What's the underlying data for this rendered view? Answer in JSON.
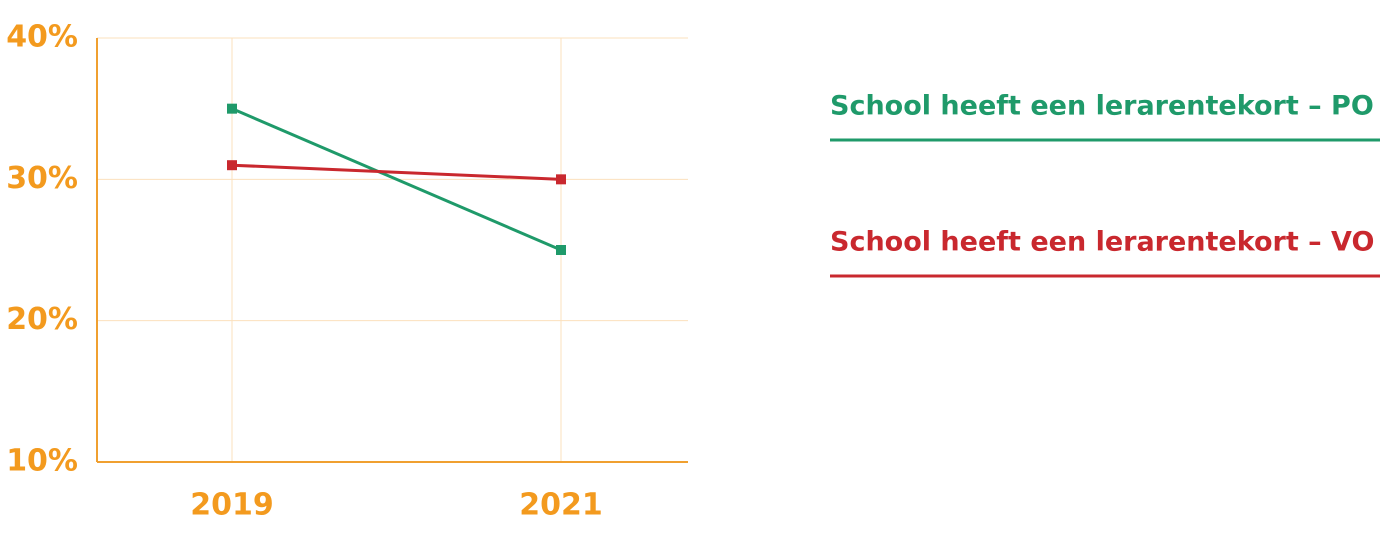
{
  "chart_data": {
    "type": "line",
    "categories": [
      "2019",
      "2021"
    ],
    "series": [
      {
        "name": "School heeft een lerarentekort – PO",
        "color": "#1f9a6a",
        "values": [
          35,
          25
        ]
      },
      {
        "name": "School heeft een lerarentekort – VO",
        "color": "#c9282e",
        "values": [
          31,
          30
        ]
      }
    ],
    "ylim": [
      10,
      40
    ],
    "yticks": [
      {
        "value": 10,
        "label": "10%"
      },
      {
        "value": 20,
        "label": "20%"
      },
      {
        "value": 30,
        "label": "30%"
      },
      {
        "value": 40,
        "label": "40%"
      }
    ],
    "grid": true
  }
}
